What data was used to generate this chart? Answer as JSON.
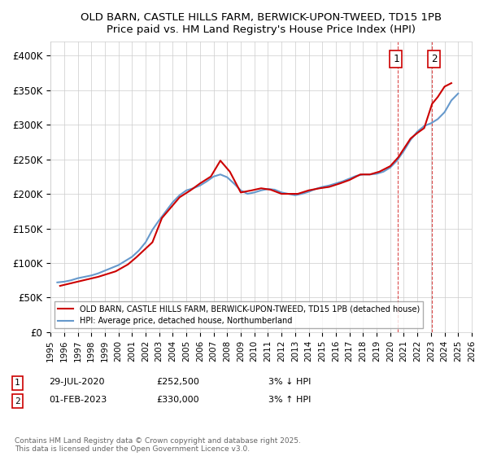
{
  "title": "OLD BARN, CASTLE HILLS FARM, BERWICK-UPON-TWEED, TD15 1PB",
  "subtitle": "Price paid vs. HM Land Registry's House Price Index (HPI)",
  "xlabel": "",
  "ylabel": "",
  "ylim": [
    0,
    420000
  ],
  "yticks": [
    0,
    50000,
    100000,
    150000,
    200000,
    250000,
    300000,
    350000,
    400000
  ],
  "ytick_labels": [
    "£0",
    "£50K",
    "£100K",
    "£150K",
    "£200K",
    "£250K",
    "£300K",
    "£350K",
    "£400K"
  ],
  "legend_label_red": "OLD BARN, CASTLE HILLS FARM, BERWICK-UPON-TWEED, TD15 1PB (detached house)",
  "legend_label_blue": "HPI: Average price, detached house, Northumberland",
  "red_color": "#cc0000",
  "blue_color": "#6699cc",
  "background_color": "#ffffff",
  "grid_color": "#cccccc",
  "annotation1_label": "1",
  "annotation1_date": "29-JUL-2020",
  "annotation1_price": "£252,500",
  "annotation1_hpi": "3% ↓ HPI",
  "annotation2_label": "2",
  "annotation2_date": "01-FEB-2023",
  "annotation2_price": "£330,000",
  "annotation2_hpi": "3% ↑ HPI",
  "footnote": "Contains HM Land Registry data © Crown copyright and database right 2025.\nThis data is licensed under the Open Government Licence v3.0.",
  "hpi_x": [
    1995.5,
    1996.0,
    1996.5,
    1997.0,
    1997.5,
    1998.0,
    1998.5,
    1999.0,
    1999.5,
    2000.0,
    2000.5,
    2001.0,
    2001.5,
    2002.0,
    2002.5,
    2003.0,
    2003.5,
    2004.0,
    2004.5,
    2005.0,
    2005.5,
    2006.0,
    2006.5,
    2007.0,
    2007.5,
    2008.0,
    2008.5,
    2009.0,
    2009.5,
    2010.0,
    2010.5,
    2011.0,
    2011.5,
    2012.0,
    2012.5,
    2013.0,
    2013.5,
    2014.0,
    2014.5,
    2015.0,
    2015.5,
    2016.0,
    2016.5,
    2017.0,
    2017.5,
    2018.0,
    2018.5,
    2019.0,
    2019.5,
    2020.0,
    2020.5,
    2021.0,
    2021.5,
    2022.0,
    2022.5,
    2023.0,
    2023.5,
    2024.0,
    2024.5,
    2025.0
  ],
  "hpi_y": [
    72000,
    73000,
    75000,
    78000,
    80000,
    82000,
    85000,
    89000,
    93000,
    97000,
    103000,
    109000,
    118000,
    130000,
    148000,
    162000,
    175000,
    188000,
    198000,
    205000,
    208000,
    212000,
    218000,
    225000,
    228000,
    224000,
    215000,
    205000,
    200000,
    202000,
    205000,
    207000,
    206000,
    202000,
    200000,
    198000,
    200000,
    203000,
    207000,
    210000,
    212000,
    215000,
    218000,
    222000,
    226000,
    228000,
    228000,
    229000,
    232000,
    238000,
    248000,
    262000,
    278000,
    290000,
    298000,
    302000,
    308000,
    318000,
    335000,
    345000
  ],
  "price_x": [
    1995.7,
    1997.2,
    1998.5,
    1999.8,
    2000.7,
    2001.3,
    2002.5,
    2003.2,
    2004.5,
    2005.3,
    2006.0,
    2006.8,
    2007.5,
    2008.2,
    2009.0,
    2009.8,
    2010.5,
    2011.2,
    2012.0,
    2013.2,
    2014.0,
    2014.8,
    2015.5,
    2016.3,
    2017.0,
    2017.8,
    2018.5,
    2019.2,
    2020.0,
    2020.58,
    2021.5,
    2022.0,
    2022.5,
    2023.08,
    2023.5,
    2024.0,
    2024.5
  ],
  "price_y": [
    67000,
    74000,
    80000,
    88000,
    98000,
    108000,
    130000,
    165000,
    195000,
    205000,
    215000,
    225000,
    248000,
    232000,
    202000,
    205000,
    208000,
    206000,
    200000,
    200000,
    205000,
    208000,
    210000,
    215000,
    220000,
    228000,
    228000,
    232000,
    240000,
    252500,
    280000,
    288000,
    295000,
    330000,
    340000,
    355000,
    360000
  ],
  "ann1_x": 2020.58,
  "ann1_y": 252500,
  "ann2_x": 2023.08,
  "ann2_y": 330000,
  "xmin": 1995,
  "xmax": 2026
}
